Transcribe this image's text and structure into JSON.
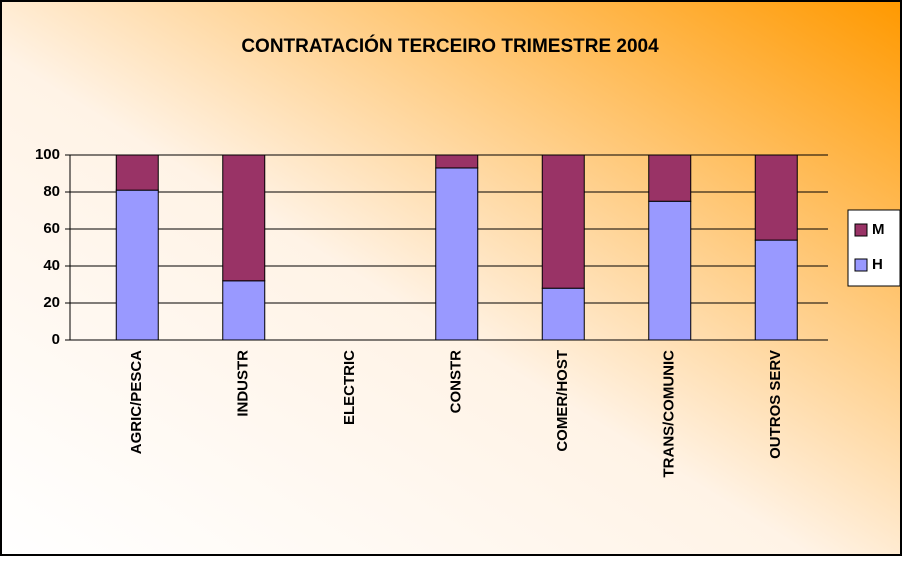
{
  "chart_data": {
    "type": "stacked_bar",
    "title": "CONTRATACIÓN TERCEIRO TRIMESTRE 2004",
    "categories": [
      "AGRIC/PESCA",
      "INDUSTR",
      "ELECTRIC",
      "CONSTR",
      "COMER/HOST",
      "TRANS/COMUNIC",
      "OUTROS SERV"
    ],
    "series": [
      {
        "name": "H",
        "color": "#9999ff",
        "values": [
          81,
          32,
          null,
          93,
          28,
          75,
          54
        ]
      },
      {
        "name": "M",
        "color": "#993366",
        "values": [
          19,
          68,
          null,
          7,
          72,
          25,
          46
        ]
      }
    ],
    "ylim": [
      0,
      100
    ],
    "yticks": [
      0,
      20,
      40,
      60,
      80,
      100
    ],
    "grid": true,
    "legend": "right"
  }
}
